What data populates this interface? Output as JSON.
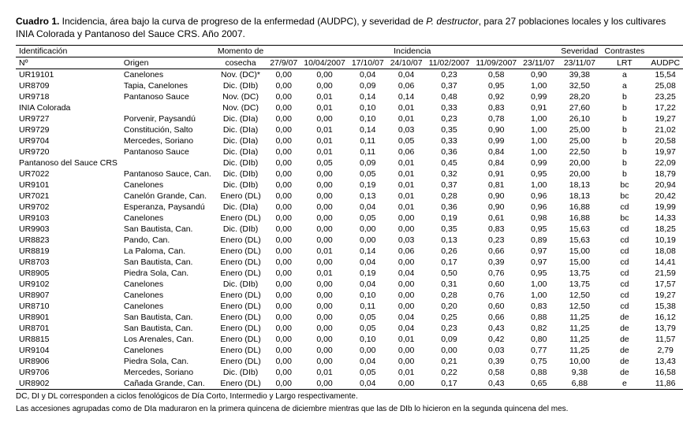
{
  "caption": {
    "label": "Cuadro 1.",
    "text_before_italic": " Incidencia, área bajo la curva de progreso de la enfermedad (AUDPC), y severidad de ",
    "italic": "P. destructor",
    "text_after_italic": ", para 27 poblaciones locales y los cultivares INIA Colorada y Pantanoso del Sauce CRS. Año 2007."
  },
  "group_headers": {
    "ident": "Identificación",
    "momento": "Momento de",
    "incid": "Incidencia",
    "sever": "Severidad",
    "contr": "Contrastes",
    "audpc_blank": ""
  },
  "col_headers": [
    "Nº",
    "Origen",
    "cosecha",
    "27/9/07",
    "10/04/2007",
    "17/10/07",
    "24/10/07",
    "11/02/2007",
    "11/09/2007",
    "23/11/07",
    "23/11/07",
    "LRT",
    "AUDPC"
  ],
  "rows": [
    [
      "UR19101",
      "Canelones",
      "Nov. (DC)*",
      "0,00",
      "0,00",
      "0,04",
      "0,04",
      "0,23",
      "0,58",
      "0,90",
      "39,38",
      "a",
      "15,54"
    ],
    [
      "UR8709",
      "Tapia, Canelones",
      "Dic. (DIb)",
      "0,00",
      "0,00",
      "0,09",
      "0,06",
      "0,37",
      "0,95",
      "1,00",
      "32,50",
      "a",
      "25,08"
    ],
    [
      "UR9718",
      "Pantanoso Sauce",
      "Nov. (DC)",
      "0,00",
      "0,01",
      "0,14",
      "0,14",
      "0,48",
      "0,92",
      "0,99",
      "28,20",
      "b",
      "23,25"
    ],
    [
      "INIA Colorada",
      "",
      "Nov. (DC)",
      "0,00",
      "0,01",
      "0,10",
      "0,01",
      "0,33",
      "0,83",
      "0,91",
      "27,60",
      "b",
      "17,22"
    ],
    [
      "UR9727",
      "Porvenir, Paysandú",
      "Dic. (DIa)",
      "0,00",
      "0,00",
      "0,10",
      "0,01",
      "0,23",
      "0,78",
      "1,00",
      "26,10",
      "b",
      "19,27"
    ],
    [
      "UR9729",
      "Constitución, Salto",
      "Dic. (DIa)",
      "0,00",
      "0,01",
      "0,14",
      "0,03",
      "0,35",
      "0,90",
      "1,00",
      "25,00",
      "b",
      "21,02"
    ],
    [
      "UR9704",
      "Mercedes, Soriano",
      "Dic. (DIa)",
      "0,00",
      "0,01",
      "0,11",
      "0,05",
      "0,33",
      "0,99",
      "1,00",
      "25,00",
      "b",
      "20,58"
    ],
    [
      "UR9720",
      "Pantanoso Sauce",
      "Dic. (DIa)",
      "0,00",
      "0,01",
      "0,11",
      "0,06",
      "0,36",
      "0,84",
      "1,00",
      "22,50",
      "b",
      "19,97"
    ],
    [
      "Pantanoso del Sauce CRS",
      "",
      "Dic. (DIb)",
      "0,00",
      "0,05",
      "0,09",
      "0,01",
      "0,45",
      "0,84",
      "0,99",
      "20,00",
      "b",
      "22,09"
    ],
    [
      "UR7022",
      "Pantanoso Sauce, Can.",
      "Dic. (DIb)",
      "0,00",
      "0,00",
      "0,05",
      "0,01",
      "0,32",
      "0,91",
      "0,95",
      "20,00",
      "b",
      "18,79"
    ],
    [
      "UR9101",
      "Canelones",
      "Dic. (DIb)",
      "0,00",
      "0,00",
      "0,19",
      "0,01",
      "0,37",
      "0,81",
      "1,00",
      "18,13",
      "bc",
      "20,94"
    ],
    [
      "UR7021",
      "Canelón Grande, Can.",
      "Enero (DL)",
      "0,00",
      "0,00",
      "0,13",
      "0,01",
      "0,28",
      "0,90",
      "0,96",
      "18,13",
      "bc",
      "20,42"
    ],
    [
      "UR9702",
      "Esperanza, Paysandú",
      "Dic. (DIa)",
      "0,00",
      "0,00",
      "0,04",
      "0,01",
      "0,36",
      "0,90",
      "0,96",
      "16,88",
      "cd",
      "19,99"
    ],
    [
      "UR9103",
      "Canelones",
      "Enero (DL)",
      "0,00",
      "0,00",
      "0,05",
      "0,00",
      "0,19",
      "0,61",
      "0,98",
      "16,88",
      "bc",
      "14,33"
    ],
    [
      "UR9903",
      "San Bautista, Can.",
      "Dic. (DIb)",
      "0,00",
      "0,00",
      "0,00",
      "0,00",
      "0,35",
      "0,83",
      "0,95",
      "15,63",
      "cd",
      "18,25"
    ],
    [
      "UR8823",
      "Pando, Can.",
      "Enero (DL)",
      "0,00",
      "0,00",
      "0,00",
      "0,03",
      "0,13",
      "0,23",
      "0,89",
      "15,63",
      "cd",
      "10,19"
    ],
    [
      "UR8819",
      "La Paloma, Can.",
      "Enero (DL)",
      "0,00",
      "0,01",
      "0,14",
      "0,06",
      "0,26",
      "0,66",
      "0,97",
      "15,00",
      "cd",
      "18,08"
    ],
    [
      "UR8703",
      "San Bautista, Can.",
      "Enero (DL)",
      "0,00",
      "0,00",
      "0,04",
      "0,00",
      "0,17",
      "0,39",
      "0,97",
      "15,00",
      "cd",
      "14,41"
    ],
    [
      "UR8905",
      "Piedra Sola, Can.",
      "Enero (DL)",
      "0,00",
      "0,01",
      "0,19",
      "0,04",
      "0,50",
      "0,76",
      "0,95",
      "13,75",
      "cd",
      "21,59"
    ],
    [
      "UR9102",
      "Canelones",
      "Dic. (DIb)",
      "0,00",
      "0,00",
      "0,04",
      "0,00",
      "0,31",
      "0,60",
      "1,00",
      "13,75",
      "cd",
      "17,57"
    ],
    [
      "UR8907",
      "Canelones",
      "Enero (DL)",
      "0,00",
      "0,00",
      "0,10",
      "0,00",
      "0,28",
      "0,76",
      "1,00",
      "12,50",
      "cd",
      "19,27"
    ],
    [
      "UR8710",
      "Canelones",
      "Enero (DL)",
      "0,00",
      "0,00",
      "0,11",
      "0,00",
      "0,20",
      "0,60",
      "0,83",
      "12,50",
      "cd",
      "15,38"
    ],
    [
      "UR8901",
      "San Bautista, Can.",
      "Enero (DL)",
      "0,00",
      "0,00",
      "0,05",
      "0,04",
      "0,25",
      "0,66",
      "0,88",
      "11,25",
      "de",
      "16,12"
    ],
    [
      "UR8701",
      "San Bautista, Can.",
      "Enero (DL)",
      "0,00",
      "0,00",
      "0,05",
      "0,04",
      "0,23",
      "0,43",
      "0,82",
      "11,25",
      "de",
      "13,79"
    ],
    [
      "UR8815",
      "Los Arenales, Can.",
      "Enero (DL)",
      "0,00",
      "0,00",
      "0,10",
      "0,01",
      "0,09",
      "0,42",
      "0,80",
      "11,25",
      "de",
      "11,57"
    ],
    [
      "UR9104",
      "Canelones",
      "Enero (DL)",
      "0,00",
      "0,00",
      "0,00",
      "0,00",
      "0,00",
      "0,03",
      "0,77",
      "11,25",
      "de",
      "2,79"
    ],
    [
      "UR8906",
      "Piedra Sola, Can.",
      "Enero (DL)",
      "0,00",
      "0,00",
      "0,04",
      "0,00",
      "0,21",
      "0,39",
      "0,75",
      "10,00",
      "de",
      "13,43"
    ],
    [
      "UR9706",
      "Mercedes, Soriano",
      "Dic. (DIb)",
      "0,00",
      "0,01",
      "0,05",
      "0,01",
      "0,22",
      "0,58",
      "0,88",
      "9,38",
      "de",
      "16,58"
    ],
    [
      "UR8902",
      "Cañada Grande, Can.",
      "Enero (DL)",
      "0,00",
      "0,00",
      "0,04",
      "0,00",
      "0,17",
      "0,43",
      "0,65",
      "6,88",
      "e",
      "11,86"
    ]
  ],
  "footnotes": [
    "DC, DI y DL corresponden a ciclos fenológicos de Día Corto, Intermedio y Largo respectivamente.",
    "Las accesiones agrupadas como de DIa maduraron en la primera quincena de diciembre mientras que las de DIb lo hicieron en la segunda quincena del mes."
  ],
  "style": {
    "font_family": "Arial",
    "font_size_body": 11,
    "font_size_table": 10.5,
    "font_size_footnote": 10,
    "border_color": "#000000",
    "background_color": "#ffffff",
    "text_color": "#000000"
  }
}
